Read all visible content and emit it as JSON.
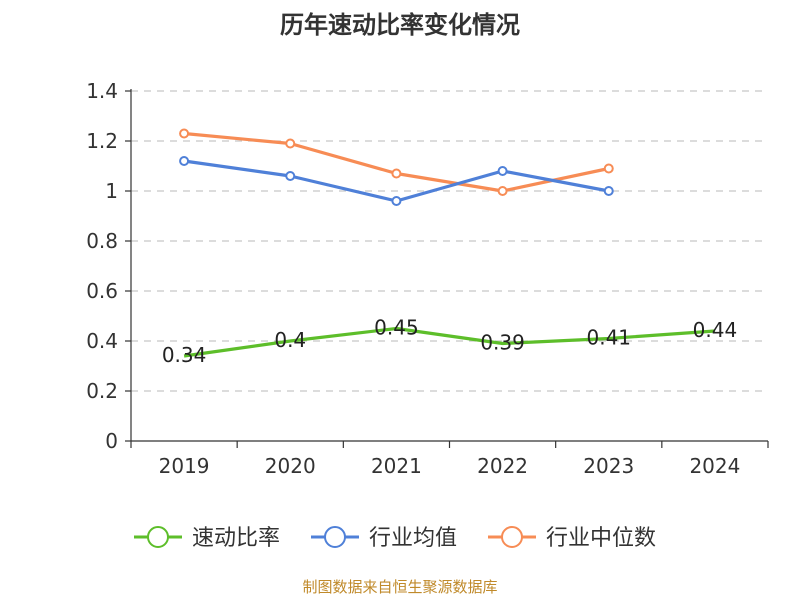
{
  "chart_data": {
    "type": "line",
    "title": "历年速动比率变化情况",
    "categories": [
      "2019",
      "2020",
      "2021",
      "2022",
      "2023",
      "2024"
    ],
    "ylim": [
      0,
      1.4
    ],
    "yticks": [
      "0",
      "0.2",
      "0.4",
      "0.6",
      "0.8",
      "1",
      "1.2",
      "1.4"
    ],
    "grid": true,
    "legend_position": "bottom",
    "series": [
      {
        "name": "速动比率",
        "color": "#5dbe2a",
        "values": [
          0.34,
          0.4,
          0.45,
          0.39,
          0.41,
          0.44
        ],
        "labels": [
          "0.34",
          "0.4",
          "0.45",
          "0.39",
          "0.41",
          "0.44"
        ],
        "markers": false
      },
      {
        "name": "行业均值",
        "color": "#4f80d8",
        "values": [
          1.12,
          1.06,
          0.96,
          1.08,
          1.0,
          null
        ],
        "markers": true
      },
      {
        "name": "行业中位数",
        "color": "#f78c55",
        "values": [
          1.23,
          1.19,
          1.07,
          1.0,
          1.09,
          null
        ],
        "markers": true
      }
    ]
  },
  "footer": {
    "source": "制图数据来自恒生聚源数据库"
  }
}
